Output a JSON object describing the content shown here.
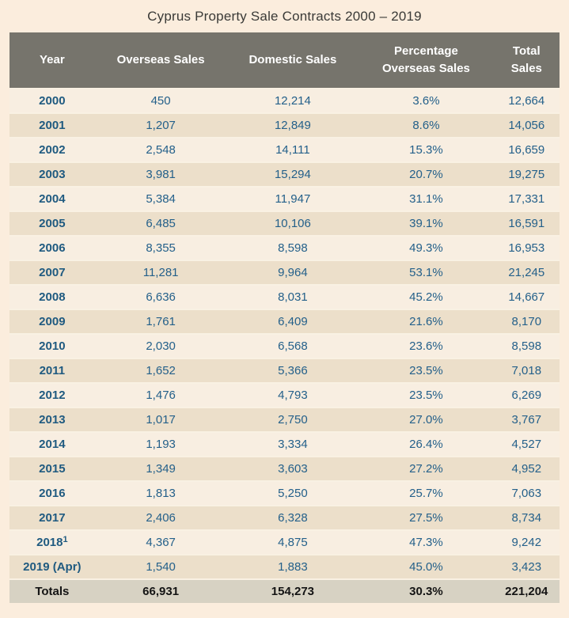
{
  "title": "Cyprus Property Sale Contracts 2000 – 2019",
  "colors": {
    "page_background": "#fbeddd",
    "header_background": "#76746c",
    "header_text": "#ffffff",
    "row_odd_background": "#f8eee1",
    "row_even_background": "#ecdfca",
    "cell_text_blue": "#24608a",
    "totals_background": "#d7d2c3",
    "totals_text": "#141414",
    "title_text": "#3a3a37"
  },
  "table": {
    "header": {
      "year": "Year",
      "overseas": "Overseas Sales",
      "domestic": "Domestic Sales",
      "pct_line1": "Percentage",
      "pct_line2": "Overseas Sales",
      "total_line1": "Total",
      "total_line2": "Sales"
    },
    "rows": [
      {
        "year": "2000",
        "overseas": "450",
        "domestic": "12,214",
        "pct": "3.6%",
        "total": "12,664"
      },
      {
        "year": "2001",
        "overseas": "1,207",
        "domestic": "12,849",
        "pct": "8.6%",
        "total": "14,056"
      },
      {
        "year": "2002",
        "overseas": "2,548",
        "domestic": "14,111",
        "pct": "15.3%",
        "total": "16,659"
      },
      {
        "year": "2003",
        "overseas": "3,981",
        "domestic": "15,294",
        "pct": "20.7%",
        "total": "19,275"
      },
      {
        "year": "2004",
        "overseas": "5,384",
        "domestic": "11,947",
        "pct": "31.1%",
        "total": "17,331"
      },
      {
        "year": "2005",
        "overseas": "6,485",
        "domestic": "10,106",
        "pct": "39.1%",
        "total": "16,591"
      },
      {
        "year": "2006",
        "overseas": "8,355",
        "domestic": "8,598",
        "pct": "49.3%",
        "total": "16,953"
      },
      {
        "year": "2007",
        "overseas": "11,281",
        "domestic": "9,964",
        "pct": "53.1%",
        "total": "21,245"
      },
      {
        "year": "2008",
        "overseas": "6,636",
        "domestic": "8,031",
        "pct": "45.2%",
        "total": "14,667"
      },
      {
        "year": "2009",
        "overseas": "1,761",
        "domestic": "6,409",
        "pct": "21.6%",
        "total": "8,170"
      },
      {
        "year": "2010",
        "overseas": "2,030",
        "domestic": "6,568",
        "pct": "23.6%",
        "total": "8,598"
      },
      {
        "year": "2011",
        "overseas": "1,652",
        "domestic": "5,366",
        "pct": "23.5%",
        "total": "7,018"
      },
      {
        "year": "2012",
        "overseas": "1,476",
        "domestic": "4,793",
        "pct": "23.5%",
        "total": "6,269"
      },
      {
        "year": "2013",
        "overseas": "1,017",
        "domestic": "2,750",
        "pct": "27.0%",
        "total": "3,767"
      },
      {
        "year": "2014",
        "overseas": "1,193",
        "domestic": "3,334",
        "pct": "26.4%",
        "total": "4,527"
      },
      {
        "year": "2015",
        "overseas": "1,349",
        "domestic": "3,603",
        "pct": "27.2%",
        "total": "4,952"
      },
      {
        "year": "2016",
        "overseas": "1,813",
        "domestic": "5,250",
        "pct": "25.7%",
        "total": "7,063"
      },
      {
        "year": "2017",
        "overseas": "2,406",
        "domestic": "6,328",
        "pct": "27.5%",
        "total": "8,734"
      },
      {
        "year": "2018",
        "footnote": "1",
        "overseas": "4,367",
        "domestic": "4,875",
        "pct": "47.3%",
        "total": "9,242"
      },
      {
        "year": "2019 (Apr)",
        "overseas": "1,540",
        "domestic": "1,883",
        "pct": "45.0%",
        "total": "3,423"
      }
    ],
    "totals": {
      "label": "Totals",
      "overseas": "66,931",
      "domestic": "154,273",
      "pct": "30.3%",
      "total": "221,204"
    }
  },
  "chart_data": {
    "type": "table",
    "title": "Cyprus Property Sale Contracts 2000 – 2019",
    "columns": [
      "Year",
      "Overseas Sales",
      "Domestic Sales",
      "Percentage Overseas Sales",
      "Total Sales"
    ],
    "rows": [
      [
        "2000",
        450,
        12214,
        "3.6%",
        12664
      ],
      [
        "2001",
        1207,
        12849,
        "8.6%",
        14056
      ],
      [
        "2002",
        2548,
        14111,
        "15.3%",
        16659
      ],
      [
        "2003",
        3981,
        15294,
        "20.7%",
        19275
      ],
      [
        "2004",
        5384,
        11947,
        "31.1%",
        17331
      ],
      [
        "2005",
        6485,
        10106,
        "39.1%",
        16591
      ],
      [
        "2006",
        8355,
        8598,
        "49.3%",
        16953
      ],
      [
        "2007",
        11281,
        9964,
        "53.1%",
        21245
      ],
      [
        "2008",
        6636,
        8031,
        "45.2%",
        14667
      ],
      [
        "2009",
        1761,
        6409,
        "21.6%",
        8170
      ],
      [
        "2010",
        2030,
        6568,
        "23.6%",
        8598
      ],
      [
        "2011",
        1652,
        5366,
        "23.5%",
        7018
      ],
      [
        "2012",
        1476,
        4793,
        "23.5%",
        6269
      ],
      [
        "2013",
        1017,
        2750,
        "27.0%",
        3767
      ],
      [
        "2014",
        1193,
        3334,
        "26.4%",
        4527
      ],
      [
        "2015",
        1349,
        3603,
        "27.2%",
        4952
      ],
      [
        "2016",
        1813,
        5250,
        "25.7%",
        7063
      ],
      [
        "2017",
        2406,
        6328,
        "27.5%",
        8734
      ],
      [
        "2018¹",
        4367,
        4875,
        "47.3%",
        9242
      ],
      [
        "2019 (Apr)",
        1540,
        1883,
        "45.0%",
        3423
      ]
    ],
    "totals_row": [
      "Totals",
      66931,
      154273,
      "30.3%",
      221204
    ]
  }
}
